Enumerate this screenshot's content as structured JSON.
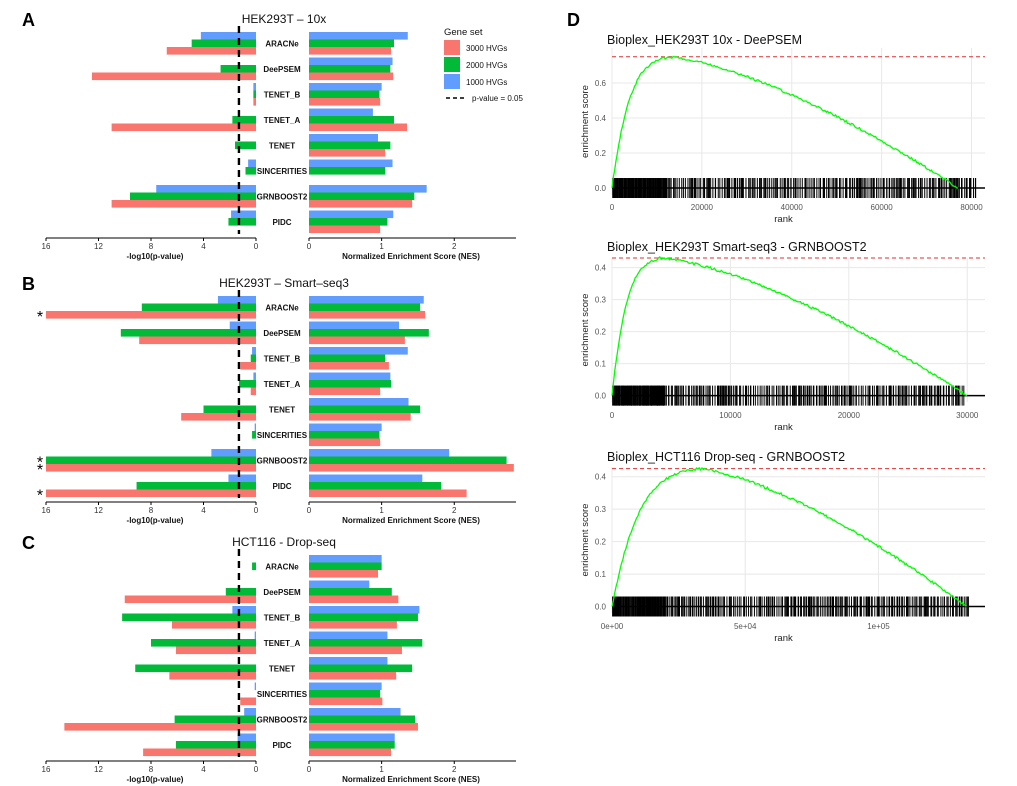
{
  "panels_abc": [
    {
      "label": "A",
      "title": "HEK293T – 10x",
      "categories": [
        "ARACNe",
        "DeePSEM",
        "TENET_B",
        "TENET_A",
        "TENET",
        "SINCERITIES",
        "GRNBOOST2",
        "PIDC"
      ],
      "neglog10p": {
        "1000 HVGs": [
          4.2,
          0.0,
          0.2,
          0.0,
          0.0,
          0.6,
          7.6,
          1.9
        ],
        "2000 HVGs": [
          4.9,
          2.7,
          0.2,
          1.8,
          1.6,
          0.8,
          9.6,
          2.1
        ],
        "3000 HVGs": [
          6.8,
          12.5,
          0.2,
          11.0,
          0.0,
          0.0,
          11.0,
          0.0
        ]
      },
      "nes": {
        "1000 HVGs": [
          1.36,
          1.15,
          1.0,
          0.88,
          0.95,
          1.15,
          1.62,
          1.16
        ],
        "2000 HVGs": [
          1.17,
          1.12,
          0.97,
          1.17,
          1.12,
          1.05,
          1.45,
          1.08
        ],
        "3000 HVGs": [
          1.13,
          1.16,
          0.98,
          1.35,
          1.05,
          0.0,
          1.42,
          0.98
        ]
      },
      "stars": []
    },
    {
      "label": "B",
      "title": "HEK293T – Smart–seq3",
      "categories": [
        "ARACNe",
        "DeePSEM",
        "TENET_B",
        "TENET_A",
        "TENET",
        "SINCERITIES",
        "GRNBOOST2",
        "PIDC"
      ],
      "neglog10p": {
        "1000 HVGs": [
          2.9,
          2.0,
          0.3,
          0.2,
          0.0,
          0.1,
          3.4,
          2.1
        ],
        "2000 HVGs": [
          8.7,
          10.3,
          0.4,
          1.3,
          4.0,
          0.3,
          16.0,
          9.1
        ],
        "3000 HVGs": [
          16.0,
          8.9,
          1.2,
          0.4,
          5.7,
          0.0,
          16.0,
          16.0
        ]
      },
      "nes": {
        "1000 HVGs": [
          1.58,
          1.24,
          1.36,
          1.12,
          1.37,
          1.0,
          1.93,
          1.56
        ],
        "2000 HVGs": [
          1.53,
          1.65,
          1.05,
          1.13,
          1.53,
          0.97,
          2.72,
          1.82
        ],
        "3000 HVGs": [
          1.6,
          1.32,
          1.1,
          0.98,
          1.4,
          0.98,
          2.82,
          2.17
        ]
      },
      "stars": [
        {
          "label": "*",
          "row": 0,
          "set": "3000 HVGs"
        },
        {
          "label": "*",
          "row": 6,
          "set": "2000 HVGs"
        },
        {
          "label": "*",
          "row": 6,
          "set": "3000 HVGs"
        },
        {
          "label": "*",
          "row": 7,
          "set": "3000 HVGs"
        }
      ]
    },
    {
      "label": "C",
      "title": "HCT116 - Drop-seq",
      "categories": [
        "ARACNe",
        "DeePSEM",
        "TENET_B",
        "TENET_A",
        "TENET",
        "SINCERITIES",
        "GRNBOOST2",
        "PIDC"
      ],
      "neglog10p": {
        "1000 HVGs": [
          0.0,
          0.0,
          1.8,
          0.1,
          0.0,
          0.1,
          0.9,
          1.4
        ],
        "2000 HVGs": [
          0.3,
          2.3,
          10.2,
          8.0,
          9.2,
          0.0,
          6.2,
          6.1
        ],
        "3000 HVGs": [
          0.0,
          10.0,
          6.4,
          6.1,
          6.6,
          1.2,
          14.6,
          8.6
        ]
      },
      "nes": {
        "1000 HVGs": [
          1.0,
          0.83,
          1.52,
          1.08,
          1.08,
          1.0,
          1.26,
          1.18
        ],
        "2000 HVGs": [
          1.0,
          1.14,
          1.5,
          1.56,
          1.42,
          0.98,
          1.46,
          1.18
        ],
        "3000 HVGs": [
          0.95,
          1.23,
          1.21,
          1.28,
          1.2,
          1.01,
          1.5,
          1.13
        ]
      },
      "stars": []
    }
  ],
  "left_axis": {
    "label": "-log10(p-value)",
    "ticks": [
      16,
      12,
      8,
      4,
      0
    ],
    "max": 16,
    "cutoff": 1.3
  },
  "right_axis": {
    "label": "Normalized Enrichment Score (NES)",
    "ticks": [
      0,
      1,
      2
    ]
  },
  "right_max": [
    2.85,
    2.85,
    2.85
  ],
  "legend": {
    "title": "Gene set",
    "items": [
      {
        "name": "3000 HVGs",
        "color": "#F8766D"
      },
      {
        "name": "2000 HVGs",
        "color": "#00BA38"
      },
      {
        "name": "1000 HVGs",
        "color": "#619CFF"
      }
    ],
    "cutoff_label": "p-value = 0.05"
  },
  "panel_d_label": "D",
  "gsea": [
    {
      "title": "Bioplex_HEK293T 10x - DeePSEM",
      "x_max": 80000,
      "x_range": [
        0,
        83000
      ],
      "x_ticks": [
        0,
        20000,
        40000,
        60000,
        80000
      ],
      "x_tick_labels": [
        "0",
        "20000",
        "40000",
        "60000",
        "80000"
      ],
      "y_range": [
        -0.04,
        0.8
      ],
      "y_ticks": [
        0.0,
        0.2,
        0.4,
        0.6
      ],
      "y_tick_labels": [
        "0.0",
        "0.2",
        "0.4",
        "0.6"
      ],
      "peak_x": 12500,
      "peak_y": 0.75,
      "end_x": 77000,
      "hit_end": 81000,
      "xlabel": "rank",
      "ylabel": "enrichment score",
      "curve_color": "#00FF00",
      "dash_color": "#E03030"
    },
    {
      "title": "Bioplex_HEK293T Smart-seq3 - GRNBOOST2",
      "x_max": 30000,
      "x_range": [
        0,
        31500
      ],
      "x_ticks": [
        0,
        10000,
        20000,
        30000
      ],
      "x_tick_labels": [
        "0",
        "10000",
        "20000",
        "30000"
      ],
      "y_range": [
        -0.02,
        0.43
      ],
      "y_ticks": [
        0.0,
        0.1,
        0.2,
        0.3,
        0.4
      ],
      "y_tick_labels": [
        "0.0",
        "0.1",
        "0.2",
        "0.3",
        "0.4"
      ],
      "peak_x": 4000,
      "peak_y": 0.43,
      "end_x": 30000,
      "hit_end": 29800,
      "xlabel": "rank",
      "ylabel": "enrichment score",
      "curve_color": "#00FF00",
      "dash_color": "#E03030"
    },
    {
      "title": "Bioplex_HCT116 Drop-seq - GRNBOOST2",
      "x_max": 135000,
      "x_range": [
        0,
        140000
      ],
      "x_ticks": [
        0,
        50000,
        100000
      ],
      "x_tick_labels": [
        "0e+00",
        "5e+04",
        "1e+05"
      ],
      "y_range": [
        -0.02,
        0.43
      ],
      "y_ticks": [
        0.0,
        0.1,
        0.2,
        0.3,
        0.4
      ],
      "y_tick_labels": [
        "0.0",
        "0.1",
        "0.2",
        "0.3",
        "0.4"
      ],
      "peak_x": 32000,
      "peak_y": 0.425,
      "end_x": 133000,
      "hit_end": 134000,
      "xlabel": "rank",
      "ylabel": "enrichment score",
      "curve_color": "#00FF00",
      "dash_color": "#E03030"
    }
  ]
}
